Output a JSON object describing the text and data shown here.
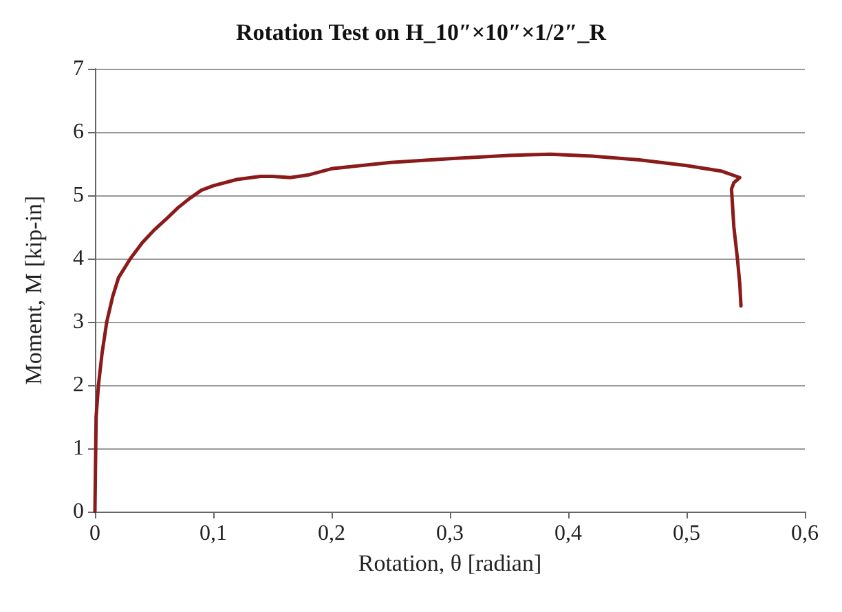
{
  "chart_data": {
    "type": "line",
    "title": "Rotation Test on H_10″×10″×1/2″_R",
    "xlabel": "Rotation, θ [radian]",
    "ylabel": "Moment, M [kip-in]",
    "series": [
      {
        "color": "#8b1a1a",
        "x": [
          0,
          0.001,
          0.003,
          0.006,
          0.01,
          0.015,
          0.02,
          0.03,
          0.04,
          0.05,
          0.06,
          0.07,
          0.08,
          0.09,
          0.1,
          0.12,
          0.14,
          0.15,
          0.165,
          0.18,
          0.2,
          0.25,
          0.3,
          0.35,
          0.385,
          0.42,
          0.46,
          0.5,
          0.53,
          0.545,
          0.54,
          0.538,
          0.54,
          0.543,
          0.545,
          0.546
        ],
        "values": [
          0,
          1.5,
          2.0,
          2.5,
          3.0,
          3.4,
          3.7,
          4.0,
          4.25,
          4.45,
          4.62,
          4.8,
          4.95,
          5.08,
          5.15,
          5.25,
          5.3,
          5.3,
          5.28,
          5.32,
          5.42,
          5.52,
          5.58,
          5.63,
          5.65,
          5.62,
          5.56,
          5.47,
          5.38,
          5.28,
          5.2,
          5.1,
          4.5,
          4.0,
          3.6,
          3.25
        ]
      }
    ],
    "xlim": [
      0,
      0.6
    ],
    "xticks": [
      0,
      {
        "value": 0.1,
        "label": "0,1"
      },
      {
        "value": 0.2,
        "label": "0,2"
      },
      {
        "value": 0.3,
        "label": "0,3"
      },
      {
        "value": 0.4,
        "label": "0,4"
      },
      {
        "value": 0.5,
        "label": "0,5"
      },
      {
        "value": 0.6,
        "label": "0,6"
      }
    ],
    "ylim": [
      0,
      7
    ],
    "yticks": [
      0,
      1,
      2,
      3,
      4,
      5,
      6,
      7
    ],
    "grid": "y",
    "marker": "none",
    "line_style": "solid"
  }
}
